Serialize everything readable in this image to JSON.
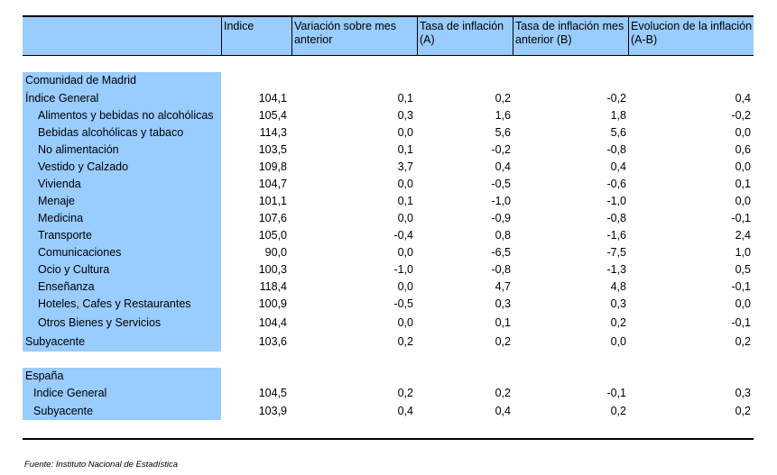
{
  "table": {
    "headers": [
      "",
      "Indice",
      "Variación sobre mes anterior",
      "Tasa de inflación (A)",
      "Tasa de inflación mes anterior (B)",
      "Evolucion de la inflación (A-B)"
    ],
    "rows": [
      {
        "label": "Comunidad de Madrid",
        "values": [
          "",
          "",
          "",
          "",
          ""
        ]
      },
      {
        "label": "Índice General",
        "values": [
          "104,1",
          "0,1",
          "0,2",
          "-0,2",
          "0,4"
        ]
      },
      {
        "label": "Alimentos y bebidas no alcohólicas",
        "values": [
          "105,4",
          "0,3",
          "1,6",
          "1,8",
          "-0,2"
        ]
      },
      {
        "label": "Bebidas alcohólicas y tabaco",
        "values": [
          "114,3",
          "0,0",
          "5,6",
          "5,6",
          "0,0"
        ]
      },
      {
        "label": "No alimentación",
        "values": [
          "103,5",
          "0,1",
          "-0,2",
          "-0,8",
          "0,6"
        ]
      },
      {
        "label": "Vestido y Calzado",
        "values": [
          "109,8",
          "3,7",
          "0,4",
          "0,4",
          "0,0"
        ]
      },
      {
        "label": "Vivienda",
        "values": [
          "104,7",
          "0,0",
          "-0,5",
          "-0,6",
          "0,1"
        ]
      },
      {
        "label": "Menaje",
        "values": [
          "101,1",
          "0,1",
          "-1,0",
          "-1,0",
          "0,0"
        ]
      },
      {
        "label": "Medicina",
        "values": [
          "107,6",
          "0,0",
          "-0,9",
          "-0,8",
          "-0,1"
        ]
      },
      {
        "label": "Transporte",
        "values": [
          "105,0",
          "-0,4",
          "0,8",
          "-1,6",
          "2,4"
        ]
      },
      {
        "label": "Comunicaciones",
        "values": [
          "90,0",
          "0,0",
          "-6,5",
          "-7,5",
          "1,0"
        ]
      },
      {
        "label": "Ocio y Cultura",
        "values": [
          "100,3",
          "-1,0",
          "-0,8",
          "-1,3",
          "0,5"
        ]
      },
      {
        "label": "Enseñanza",
        "values": [
          "118,4",
          "0,0",
          "4,7",
          "4,8",
          "-0,1"
        ]
      },
      {
        "label": "Hoteles, Cafes y Restaurantes",
        "values": [
          "100,9",
          "-0,5",
          "0,3",
          "0,3",
          "0,0"
        ]
      },
      {
        "label": "Otros Bienes y Servicios",
        "values": [
          "104,4",
          "0,0",
          "0,1",
          "0,2",
          "-0,1"
        ]
      },
      {
        "label": "Subyacente",
        "values": [
          "103,6",
          "0,2",
          "0,2",
          "0,0",
          "0,2"
        ]
      },
      {
        "label": "España",
        "values": [
          "",
          "",
          "",
          "",
          ""
        ]
      },
      {
        "label": "Indice General",
        "values": [
          "104,5",
          "0,2",
          "0,2",
          "-0,1",
          "0,3"
        ]
      },
      {
        "label": "Subyacente",
        "values": [
          "103,9",
          "0,4",
          "0,4",
          "0,2",
          "0,2"
        ]
      }
    ]
  },
  "source": "Fuente: Instituto Nacional de Estadística"
}
